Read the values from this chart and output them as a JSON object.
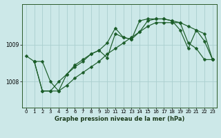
{
  "title": "Graphe pression niveau de la mer (hPa)",
  "background_color": "#cce8e8",
  "grid_color": "#aacece",
  "line_color": "#1a5c28",
  "xlim": [
    -0.5,
    23.5
  ],
  "ylim": [
    1007.3,
    1010.1
  ],
  "yticks": [
    1008,
    1009
  ],
  "xticks": [
    0,
    1,
    2,
    3,
    4,
    5,
    6,
    7,
    8,
    9,
    10,
    11,
    12,
    13,
    14,
    15,
    16,
    17,
    18,
    19,
    20,
    21,
    22,
    23
  ],
  "series1": {
    "x": [
      0,
      1,
      2,
      3,
      4,
      5,
      6,
      7,
      8,
      9,
      10,
      11,
      12,
      13,
      14,
      15,
      16,
      17,
      18,
      19,
      20,
      21,
      22,
      23
    ],
    "y": [
      1008.7,
      1008.55,
      1007.75,
      1007.75,
      1007.75,
      1007.9,
      1008.1,
      1008.25,
      1008.4,
      1008.55,
      1008.75,
      1008.9,
      1009.05,
      1009.2,
      1009.35,
      1009.5,
      1009.6,
      1009.6,
      1009.6,
      1009.6,
      1009.5,
      1009.4,
      1009.3,
      1008.6
    ]
  },
  "series2": {
    "x": [
      1,
      2,
      3,
      4,
      5,
      6,
      7,
      8,
      9,
      10,
      11,
      12,
      13,
      14,
      15,
      16,
      17,
      18,
      19,
      20,
      21,
      22,
      23
    ],
    "y": [
      1008.55,
      1008.55,
      1008.0,
      1007.75,
      1008.2,
      1008.45,
      1008.6,
      1008.75,
      1008.85,
      1009.05,
      1009.45,
      1009.2,
      1009.15,
      1009.35,
      1009.65,
      1009.7,
      1009.7,
      1009.65,
      1009.4,
      1008.9,
      1009.4,
      1009.1,
      1008.6
    ]
  },
  "series3": {
    "x": [
      1,
      2,
      3,
      4,
      5,
      6,
      7,
      8,
      9,
      10,
      11,
      12,
      13,
      14,
      15,
      16,
      17,
      18,
      19,
      20,
      21,
      22,
      23
    ],
    "y": [
      1008.55,
      1007.75,
      1007.75,
      1008.0,
      1008.2,
      1008.4,
      1008.55,
      1008.75,
      1008.85,
      1008.65,
      1009.3,
      1009.2,
      1009.15,
      1009.65,
      1009.7,
      1009.7,
      1009.7,
      1009.65,
      1009.6,
      1009.05,
      1008.9,
      1008.6,
      1008.6
    ]
  }
}
